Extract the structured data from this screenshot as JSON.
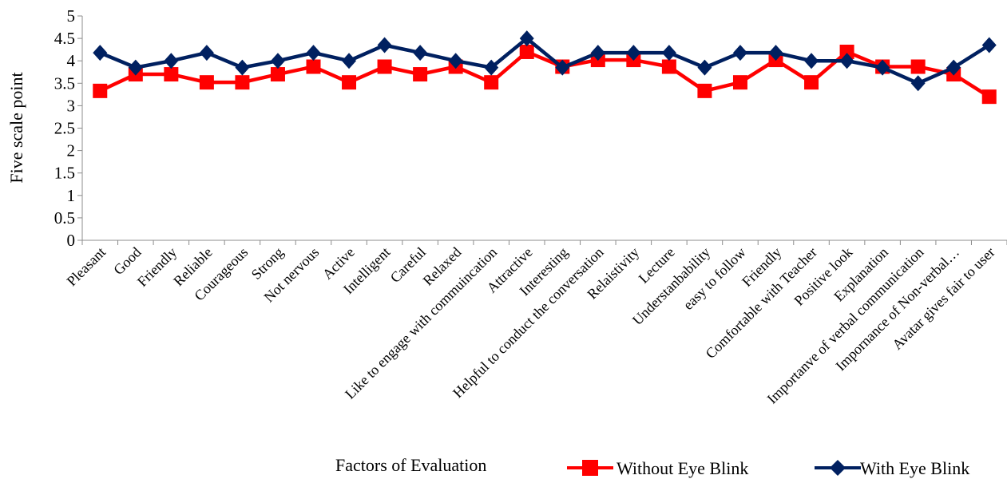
{
  "chart_data": {
    "type": "line",
    "xlabel": "Factors of Evaluation",
    "ylabel": "Five scale point",
    "ylim": [
      0,
      5
    ],
    "yticks": [
      "0",
      "0.5",
      "1",
      "1.5",
      "2",
      "2.5",
      "3",
      "3.5",
      "4",
      "4.5",
      "5"
    ],
    "grid": false,
    "legend_position": "bottom-right",
    "categories": [
      "Pleasant",
      "Good",
      "Friendly",
      "Reliable",
      "Courageous",
      "Strong",
      "Not nervous",
      "Active",
      "Intelligent",
      "Careful",
      "Relaxed",
      "Like to engage with commuincation",
      "Attractive",
      "Interesting",
      "Helpful to conduct the conversation",
      "Relaistivity",
      "Lecture",
      "Understanbability",
      "easy to follow",
      "Friendly",
      "Comfortable with Teacher",
      "Positive look",
      "Explanation",
      "Importanve of verbal communication",
      "Impornance of Non-verbal…",
      "Avatar gives fair to user"
    ],
    "series": [
      {
        "name": "Without Eye Blink",
        "color": "#ff0000",
        "marker": "square",
        "values": [
          3.33,
          3.7,
          3.7,
          3.52,
          3.52,
          3.7,
          3.87,
          3.52,
          3.87,
          3.7,
          3.87,
          3.52,
          4.2,
          3.87,
          4.02,
          4.02,
          3.87,
          3.33,
          3.52,
          4.02,
          3.52,
          4.2,
          3.87,
          3.87,
          3.7,
          3.2
        ]
      },
      {
        "name": "With Eye Blink",
        "color": "#002060",
        "marker": "diamond",
        "values": [
          4.18,
          3.85,
          4.0,
          4.18,
          3.85,
          4.0,
          4.18,
          4.0,
          4.35,
          4.18,
          4.0,
          3.85,
          4.5,
          3.85,
          4.18,
          4.18,
          4.18,
          3.85,
          4.18,
          4.18,
          4.0,
          4.0,
          3.85,
          3.5,
          3.85,
          4.35
        ]
      }
    ]
  }
}
